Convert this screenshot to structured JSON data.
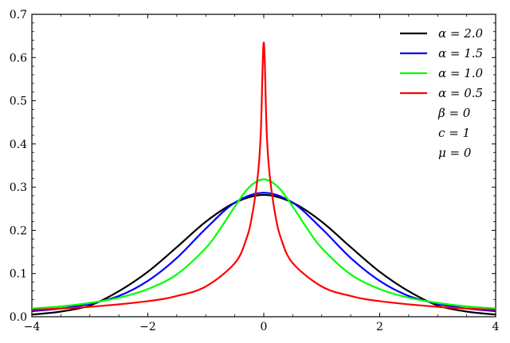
{
  "chart_data": {
    "type": "line",
    "xlim": [
      -4,
      4
    ],
    "ylim": [
      0,
      0.7
    ],
    "x_ticks": [
      {
        "value": -4,
        "label": "−4"
      },
      {
        "value": -2,
        "label": "−2"
      },
      {
        "value": 0,
        "label": "0"
      },
      {
        "value": 2,
        "label": "2"
      },
      {
        "value": 4,
        "label": "4"
      }
    ],
    "y_ticks": [
      {
        "value": 0.0,
        "label": "0.0"
      },
      {
        "value": 0.1,
        "label": "0.1"
      },
      {
        "value": 0.2,
        "label": "0.2"
      },
      {
        "value": 0.3,
        "label": "0.3"
      },
      {
        "value": 0.4,
        "label": "0.4"
      },
      {
        "value": 0.5,
        "label": "0.5"
      },
      {
        "value": 0.6,
        "label": "0.6"
      },
      {
        "value": 0.7,
        "label": "0.7"
      }
    ],
    "grid": false,
    "legend_position": "top-right",
    "series": [
      {
        "name": "α = 2.0",
        "color": "#000000",
        "x": [
          -4,
          -3.5,
          -3,
          -2.5,
          -2,
          -1.5,
          -1,
          -0.5,
          0,
          0.5,
          1,
          1.5,
          2,
          2.5,
          3,
          3.5,
          4
        ],
        "y": [
          0.005,
          0.012,
          0.026,
          0.059,
          0.104,
          0.161,
          0.22,
          0.264,
          0.282,
          0.264,
          0.22,
          0.161,
          0.104,
          0.059,
          0.026,
          0.012,
          0.005
        ]
      },
      {
        "name": "α = 1.5",
        "color": "#0000ff",
        "x": [
          -4,
          -3.5,
          -3,
          -2.5,
          -2,
          -1.5,
          -1,
          -0.5,
          0,
          0.5,
          1,
          1.5,
          2,
          2.5,
          3,
          3.5,
          4
        ],
        "y": [
          0.013,
          0.019,
          0.03,
          0.048,
          0.083,
          0.136,
          0.204,
          0.264,
          0.287,
          0.264,
          0.204,
          0.136,
          0.083,
          0.048,
          0.03,
          0.019,
          0.013
        ]
      },
      {
        "name": "α = 1.0",
        "color": "#00ff00",
        "x": [
          -4,
          -3.5,
          -3,
          -2.5,
          -2,
          -1.5,
          -1,
          -0.75,
          -0.5,
          -0.25,
          0,
          0.25,
          0.5,
          0.75,
          1,
          1.5,
          2,
          2.5,
          3,
          3.5,
          4
        ],
        "y": [
          0.019,
          0.024,
          0.032,
          0.044,
          0.064,
          0.098,
          0.159,
          0.204,
          0.255,
          0.3,
          0.318,
          0.3,
          0.255,
          0.204,
          0.159,
          0.098,
          0.064,
          0.044,
          0.032,
          0.024,
          0.019
        ]
      },
      {
        "name": "α = 0.5",
        "color": "#ff0000",
        "x": [
          -4,
          -3,
          -2,
          -1.5,
          -1,
          -0.5,
          -0.3,
          -0.2,
          -0.1,
          -0.05,
          0,
          0.05,
          0.1,
          0.2,
          0.3,
          0.5,
          1,
          1.5,
          2,
          3,
          4
        ],
        "y": [
          0.016,
          0.023,
          0.036,
          0.048,
          0.07,
          0.124,
          0.18,
          0.235,
          0.33,
          0.43,
          0.635,
          0.43,
          0.33,
          0.235,
          0.18,
          0.124,
          0.07,
          0.048,
          0.036,
          0.023,
          0.016
        ]
      }
    ],
    "annotations": [
      "β = 0",
      "c = 1",
      "μ = 0"
    ]
  }
}
